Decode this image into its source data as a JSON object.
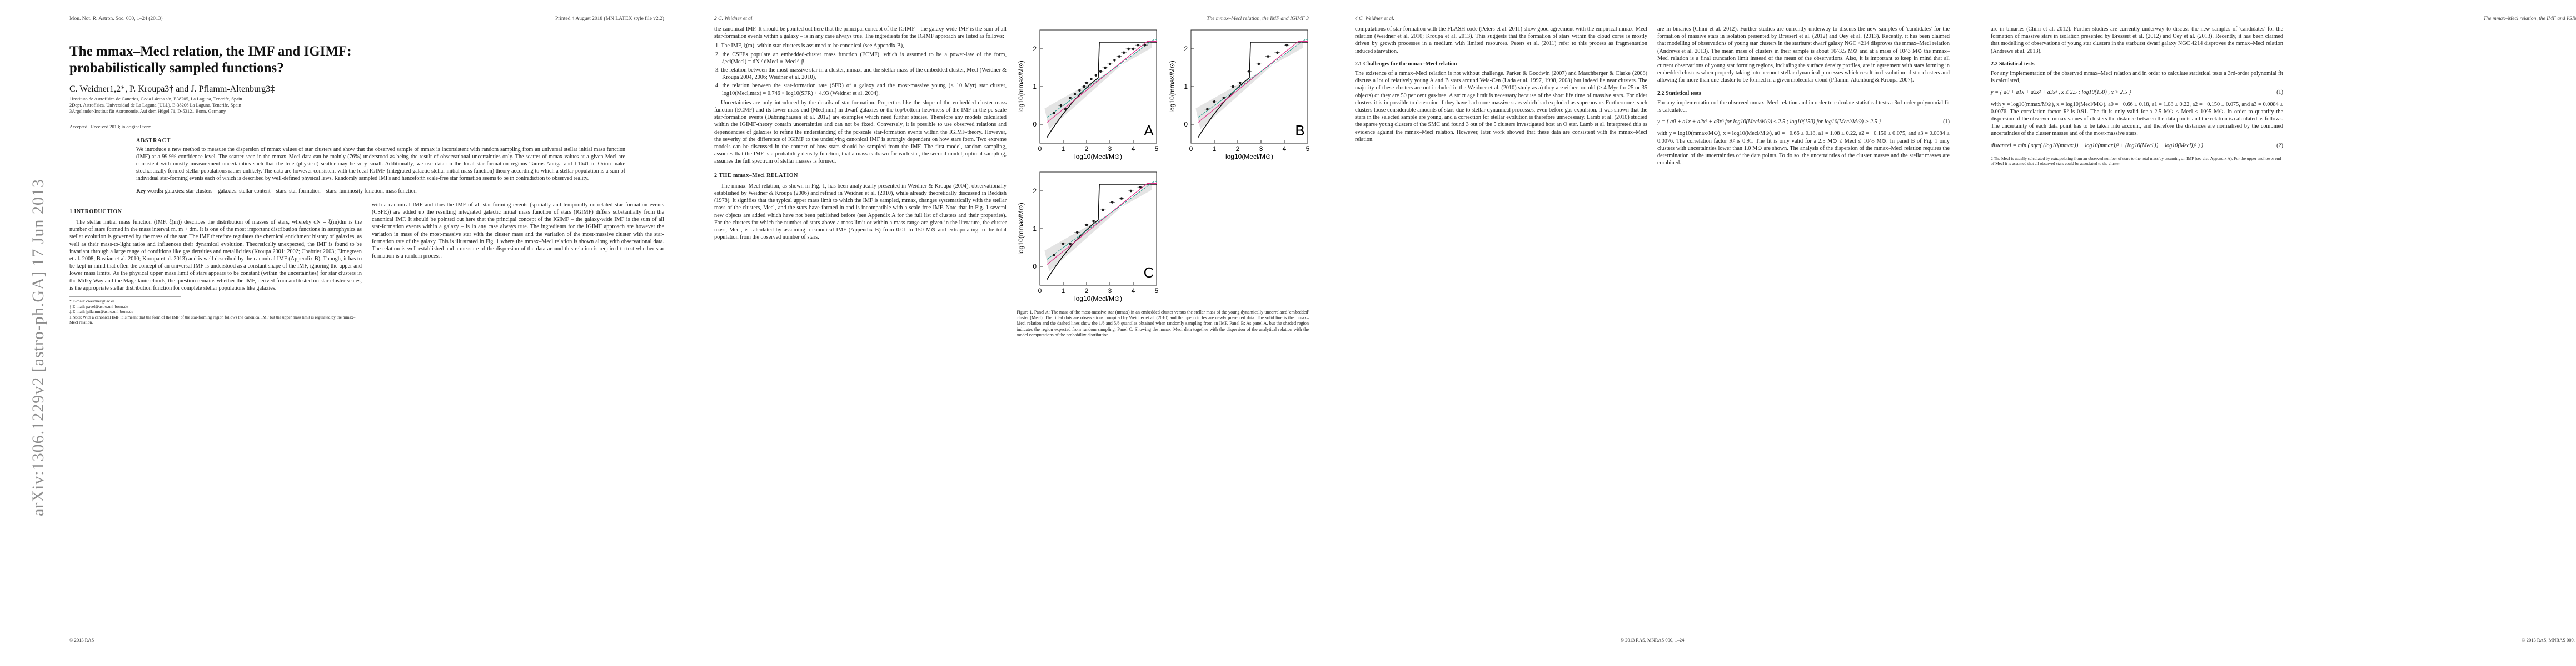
{
  "sidebar": {
    "arxiv_id": "arXiv:1306.1229v2  [astro-ph.GA]  17 Jun 2013"
  },
  "page1": {
    "running_left": "Mon. Not. R. Astron. Soc. 000, 1–24 (2013)",
    "running_right": "Printed 4 August 2018       (MN LATEX style file v2.2)",
    "title": "The mmax–Mecl relation, the IMF and IGIMF: probabilistically sampled functions?",
    "authors": "C. Weidner1,2*, P. Kroupa3† and J. Pflamm-Altenburg3‡",
    "affil1": "1Instituto de Astrofísica de Canarias, C/via Láctea s/n, E38205, La Laguna, Tenerife, Spain",
    "affil2": "2Dept. Astrofísica, Universidad de La Laguna (ULL), E-38206 La Laguna, Tenerife, Spain",
    "affil3": "3Argelander-Institut für Astronomie, Auf dem Hügel 71, D-53121 Bonn, Germany",
    "accepted": "Accepted . Received 2013; in original form",
    "abstract_head": "ABSTRACT",
    "abstract": "We introduce a new method to measure the dispersion of mmax values of star clusters and show that the observed sample of mmax is inconsistent with random sampling from an universal stellar initial mass function (IMF) at a 99.9% confidence level. The scatter seen in the mmax–Mecl data can be mainly (76%) understood as being the result of observational uncertainties only. The scatter of mmax values at a given Mecl are consistent with mostly measurement uncertainties such that the true (physical) scatter may be very small. Additionally, we use data on the local star-formation regions Taurus-Auriga and L1641 in Orion make stochastically formed stellar populations rather unlikely. The data are however consistent with the local IGIMF (integrated galactic stellar initial mass function) theory according to which a stellar population is a sum of individual star-forming events each of which is described by well-defined physical laws. Randomly sampled IMFs and henceforth scale-free star formation seems to be in contradiction to observed reality.",
    "keywords_label": "Key words:",
    "keywords": "galaxies: star clusters – galaxies: stellar content – stars: star formation – stars: luminosity function, mass function",
    "sec1": "1   INTRODUCTION",
    "col1": "The stellar initial mass function (IMF, ξ(m)) describes the distribution of masses of stars, whereby dN = ξ(m)dm is the number of stars formed in the mass interval m, m + dm. It is one of the most important distribution functions in astrophysics as stellar evolution is governed by the mass of the star. The IMF therefore regulates the chemical enrichment history of galaxies, as well as their mass-to-light ratios and influences their dynamical evolution. Theoretically unexpected, the IMF is found to be invariant through a large range of conditions like gas densities and metallicities (Kroupa 2001; 2002; Chabrier 2003; Elmegreen et al. 2008; Bastian et al. 2010; Kroupa et al. 2013) and is well described by the canonical IMF (Appendix B). Though, it has to be kept in mind that often the concept of an universal IMF is understood as a constant shape of the IMF, ignoring the upper and lower mass limits. As the physical upper mass limit of stars appears to be constant (within the uncertainties) for star clusters in the Milky Way and the Magellanic clouds, the question remains whether the IMF, derived from and tested on star cluster scales, is the appropriate stellar distribution function for complete stellar populations like galaxies.",
    "col2": "with a canonical IMF and thus the IMF of all star-forming events (spatially and temporally correlated star formation events (CSFE)) are added up the resulting integrated galactic initial mass function of stars (IGIMF) differs substantially from the canonical IMF. It should be pointed out here that the principal concept of the IGIMF – the galaxy-wide IMF is the sum of all star-formation events within a galaxy – is in any case always true. The ingredients for the IGIMF approach are however the variation in mass of the most-massive star with the cluster mass and the variation of the most-massive cluster with the star-formation rate of the galaxy. This is illustrated in Fig. 1 where the mmax–Mecl relation is shown along with observational data. The relation is well established and a measure of the dispersion of the data around this relation is required to test whether star formation is a random process.",
    "footnotes": [
      "* E-mail: cweidner@iac.es",
      "† E-mail: pavel@astro.uni-bonn.de",
      "‡ E-mail: jpflamm@astro.uni-bonn.de",
      "1 Note: With a canonical IMF it is meant that the form of the IMF of the star-forming region follows the canonical IMF but the upper mass limit is regulated by the mmax–Mecl relation."
    ],
    "footer_left": "© 2013 RAS",
    "footer_right": ""
  },
  "page2": {
    "running_left": "2    C. Weidner et al.",
    "running_right": "The mmax–Mecl relation, the IMF and IGIMF    3",
    "col_top": "the canonical IMF. It should be pointed out here that the principal concept of the IGIMF – the galaxy-wide IMF is the sum of all star-formation events within a galaxy – is in any case always true. The ingredients for the IGIMF approach are listed as follows:",
    "items": [
      "1. The IMF, ξ(m), within star clusters is assumed to be canonical (see Appendix B),",
      "2. the CSFEs populate an embedded-cluster mass function (ECMF), which is assumed to be a power-law of the form, ξecl(Mecl) = dN / dMecl ∝ Mecl^-β,",
      "3. the relation between the most-massive star in a cluster, mmax, and the stellar mass of the embedded cluster, Mecl (Weidner & Kroupa 2004, 2006; Weidner et al. 2010),",
      "4. the relation between the star-formation rate (SFR) of a galaxy and the most-massive young (< 10 Myr) star cluster, log10(Mecl,max) = 0.746 × log10(SFR) + 4.93 (Weidner et al. 2004)."
    ],
    "col_mid": "Uncertainties are only introduced by the details of star-formation. Properties like the slope of the embedded-cluster mass function (ECMF) and its lower mass end (Mecl,min) in dwarf galaxies or the top/bottom-heaviness of the IMF in the pc-scale star-formation events (Dabringhausen et al. 2012) are examples which need further studies. Therefore any models calculated within the IGIMF-theory contain uncertainties and can not be fixed. Conversely, it is possible to use observed relations and dependencies of galaxies to refine the understanding of the pc-scale star-formation events within the IGIMF-theory. However, the severity of the difference of IGIMF to the underlying canonical IMF is strongly dependent on how stars form. Two extreme models can be discussed in the context of how stars should be sampled from the IMF. The first model, random sampling, assumes that the IMF is a probability density function, that a mass is drawn for each star, the second model, optimal sampling, assumes the full spectrum of stellar masses is formed.",
    "sec2": "2   THE mmax–Mecl RELATION",
    "col_sec2": "The mmax–Mecl relation, as shown in Fig. 1, has been analytically presented in Weidner & Kroupa (2004), observationally established by Weidner & Kroupa (2006) and refined in Weidner et al. (2010), while already theoretically discussed in Reddish (1978). It signifies that the typical upper mass limit to which the IMF is sampled, mmax, changes systematically with the stellar mass of the clusters, Mecl, and the stars have formed in and is incompatible with a scale-free IMF. Note that in Fig. 1 several new objects are added which have not been published before (see Appendix A for the full list of clusters and their properties). For the clusters for which the number of stars above a mass limit or within a mass range are given in the literature, the cluster mass, Mecl, is calculated by assuming a canonical IMF (Appendix B) from 0.01 to 150 M⊙ and extrapolating to the total population from the observed number of stars.",
    "col2_text": "computations of star formation with the FLASH code (Peters et al. 2011) show good agreement with the empirical mmax–Mecl relation (Weidner et al. 2010; Kroupa et al. 2013). This suggests that the formation of stars within the cloud cores is mostly driven by growth processes in a medium with limited resources. Peters et al. (2011) refer to this process as fragmentation induced starvation.",
    "caption": "Figure 1. Panel A: The mass of the most-massive star (mmax) in an embedded cluster versus the stellar mass of the young dynamically uncorrelated 'embedded' cluster (Mecl). The filled dots are observations compiled by Weidner et al. (2010) and the open circles are newly presented data. The solid line is the mmax–Mecl relation and the dashed lines show the 1/6 and 5/6 quantiles obtained when randomly sampling from an IMF. Panel B: As panel A, but the shaded region indicates the region expected from random sampling. Panel C: Showing the mmax–Mecl data together with the dispersion of the analytical relation with the model computations of the probability distribution."
  },
  "page3": {
    "running_left": "4    C. Weidner et al.",
    "running_right": "",
    "col1_top": "computations of star formation with the FLASH code (Peters et al. 2011) show good agreement with the empirical mmax–Mecl relation (Weidner et al. 2010; Kroupa et al. 2013). This suggests that the formation of stars within the cloud cores is mostly driven by growth processes in a medium with limited resources. Peters et al. (2011) refer to this process as fragmentation induced starvation.",
    "subsec": "2.1   Challenges for the mmax–Mecl relation",
    "col1": "The existence of a mmax–Mecl relation is not without challenge. Parker & Goodwin (2007) and Maschberger & Clarke (2008) discuss a lot of relatively young A and B stars around Vela-Cen (Lada et al. 1997, 1998, 2008) but indeed lie near clusters. The majority of these clusters are not included in the Weidner et al. (2010) study as a) they are either too old (> 4 Myr for 25 or 35 objects) or they are 50 per cent gas-free. A strict age limit is necessary because of the short life time of massive stars. For older clusters it is impossible to determine if they have had more massive stars which had exploded as supernovae. Furthermore, such clusters loose considerable amounts of stars due to stellar dynamical processes, even before gas expulsion. It was shown that the stars in the selected sample are young, and a correction for stellar evolution is therefore unnecessary. Lamb et al. (2010) studied the sparse young clusters of the SMC and found 3 out of the 5 clusters investigated host an O star. Lamb et al. interpreted this as evidence against the mmax–Mecl relation. However, later work showed that these data are consistent with the mmax–Mecl relation.",
    "col2": "are in binaries (Chini et al. 2012). Further studies are currently underway to discuss the new samples of 'candidates' for the formation of massive stars in isolation presented by Bressert et al. (2012) and Oey et al. (2013). Recently, it has been claimed that modelling of observations of young star clusters in the starburst dwarf galaxy NGC 4214 disproves the mmax–Mecl relation (Andrews et al. 2013). The mean mass of clusters in their sample is about 10^3.5 M⊙ and at a mass of 10^3 M⊙ the mmax–Mecl relation is a final truncation limit instead of the mean of the observations. Also, it is important to keep in mind that all current observations of young star forming regions, including the surface density profiles, are in agreement with stars forming in embedded clusters when properly taking into account stellar dynamical processes which result in dissolution of star clusters and allowing for more than one cluster to be formed in a given molecular cloud (Pflamm-Altenburg & Kroupa 2007).",
    "subsec2": "2.2   Statistical tests",
    "col2b": "For any implementation of the observed mmax–Mecl relation and in order to calculate statistical tests a 3rd-order polynomial fit is calculated,",
    "eq1": "y = { a0 + a1x + a2x² + a3x³    for log10(Mecl/M⊙) ≤ 2.5 ; log10(150)  for log10(Mecl/M⊙) > 2.5 }",
    "eq1_num": "(1)",
    "col2c": "with y = log10(mmax/M⊙), x = log10(Mecl/M⊙), a0 = −0.66 ± 0.18, a1 = 1.08 ± 0.22, a2 = −0.150 ± 0.075, and a3 = 0.0084 ± 0.0076. The correlation factor R² is 0.91. The fit is only valid for a 2.5 M⊙ ≤ Mecl ≤ 10^5 M⊙. In panel B of Fig. 1 only clusters with uncertainties lower than 1.0 M⊙ are shown. The analysis of the dispersion of the mmax–Mecl relation requires the determination of the uncertainties of the data points. To do so, the uncertainties of the cluster masses and the stellar masses are combined.",
    "footer_center": "© 2013 RAS, MNRAS 000, 1–24"
  },
  "page4": {
    "running_left": "",
    "running_right": "The mmax–Mecl relation, the IMF and IGIMF    5",
    "col1": "are in binaries (Chini et al. 2012). Further studies are currently underway to discuss the new samples of 'candidates' for the formation of massive stars in isolation presented by Bressert et al. (2012) and Oey et al. (2013). Recently, it has been claimed that modelling of observations of young star clusters in the starburst dwarf galaxy NGC 4214 disproves the mmax–Mecl relation (Andrews et al. 2013).",
    "subsec": "2.2   Statistical tests",
    "col1b": "For any implementation of the observed mmax–Mecl relation and in order to calculate statistical tests a 3rd-order polynomial fit is calculated,",
    "eq1": "y = { a0 + a1x + a2x² + a3x³ ,  x ≤ 2.5 ;  log10(150) ,  x > 2.5 }",
    "eq1_num": "(1)",
    "col1c": "with y = log10(mmax/M⊙), x = log10(Mecl/M⊙), a0 = −0.66 ± 0.18, a1 = 1.08 ± 0.22, a2 = −0.150 ± 0.075, and a3 = 0.0084 ± 0.0076. The correlation factor R² is 0.91. The fit is only valid for a 2.5 M⊙ ≤ Mecl ≤ 10^5 M⊙. In order to quantify the dispersion of the observed mmax values of clusters the distance between the data points and the relation is calculated as follows. The uncertainty of each data point has to be taken into account, and therefore the distances are normalised by the combined uncertainties of the cluster masses and of the most-massive stars.",
    "eq2": "distancei = min ( sqrt( (log10(mmax,i) − log10(mmax))² + (log10(Mecl,i) − log10(Mecl))² ) )",
    "eq2_num": "(2)",
    "footnote": "2 The Mecl is usually calculated by extrapolating from an observed number of stars to the total mass by assuming an IMF (see also Appendix A). For the upper and lower end of Mecl it is assumed that all observed stars could be associated to the cluster.",
    "footer_right": "© 2013 RAS, MNRAS 000, 1–24"
  },
  "figure": {
    "panels": [
      {
        "label": "A",
        "xlabel": "log10(Mecl/M⊙)",
        "ylabel": "log10(mmax/M⊙)",
        "xticks": [
          "0",
          "1",
          "2",
          "3",
          "4",
          "5"
        ],
        "yticks": [
          "0",
          "1",
          "2"
        ]
      },
      {
        "label": "B",
        "xlabel": "log10(Mecl/M⊙)",
        "ylabel": "log10(mmax/M⊙)",
        "xticks": [
          "0",
          "1",
          "2",
          "3",
          "4",
          "5"
        ],
        "yticks": [
          "0",
          "1",
          "2"
        ]
      },
      {
        "label": "C",
        "xlabel": "log10(Mecl/M⊙)",
        "ylabel": "log10(mmax/M⊙)",
        "xticks": [
          "0",
          "1",
          "2",
          "3",
          "4",
          "5"
        ],
        "yticks": [
          "0",
          "1",
          "2"
        ]
      }
    ],
    "colors": {
      "relation": "#111111",
      "quantile": "#777777",
      "random": "#e0338c",
      "alt": "#2a9d8f",
      "points": "#1a1a1a",
      "shade": "#d9d9d9"
    }
  },
  "chart_data": [
    {
      "type": "scatter",
      "title": "",
      "xlabel": "log10(Mecl/M⊙)",
      "ylabel": "log10(mmax/M⊙)",
      "xlim": [
        0,
        5
      ],
      "ylim": [
        -0.5,
        2.5
      ],
      "series": [
        {
          "values": [
            [
              0.6,
              0.3
            ],
            [
              0.9,
              0.5
            ],
            [
              1.1,
              0.4
            ],
            [
              1.3,
              0.7
            ],
            [
              1.5,
              0.8
            ],
            [
              1.7,
              0.9
            ],
            [
              1.9,
              1.0
            ],
            [
              2.0,
              1.1
            ],
            [
              2.2,
              1.2
            ],
            [
              2.4,
              1.3
            ],
            [
              2.6,
              1.4
            ],
            [
              2.8,
              1.5
            ],
            [
              3.0,
              1.6
            ],
            [
              3.2,
              1.7
            ],
            [
              3.4,
              1.8
            ],
            [
              3.6,
              1.9
            ],
            [
              3.8,
              2.0
            ],
            [
              4.0,
              2.0
            ],
            [
              4.2,
              2.1
            ],
            [
              4.5,
              2.1
            ]
          ]
        }
      ]
    },
    {
      "type": "scatter",
      "title": "",
      "xlabel": "log10(Mecl/M⊙)",
      "ylabel": "log10(mmax/M⊙)",
      "xlim": [
        0,
        5
      ],
      "ylim": [
        -0.5,
        2.5
      ],
      "series": [
        {
          "values": [
            [
              0.7,
              0.4
            ],
            [
              1.0,
              0.6
            ],
            [
              1.4,
              0.7
            ],
            [
              1.8,
              1.0
            ],
            [
              2.1,
              1.1
            ],
            [
              2.5,
              1.4
            ],
            [
              2.9,
              1.6
            ],
            [
              3.3,
              1.8
            ],
            [
              3.7,
              1.9
            ],
            [
              4.1,
              2.1
            ]
          ]
        }
      ]
    },
    {
      "type": "scatter",
      "title": "",
      "xlabel": "log10(Mecl/M⊙)",
      "ylabel": "log10(mmax/M⊙)",
      "xlim": [
        0,
        5
      ],
      "ylim": [
        -0.5,
        2.5
      ],
      "series": [
        {
          "values": [
            [
              0.6,
              0.3
            ],
            [
              1.0,
              0.6
            ],
            [
              1.3,
              0.6
            ],
            [
              1.6,
              0.9
            ],
            [
              2.0,
              1.1
            ],
            [
              2.3,
              1.2
            ],
            [
              2.7,
              1.5
            ],
            [
              3.1,
              1.7
            ],
            [
              3.5,
              1.8
            ],
            [
              3.9,
              2.0
            ],
            [
              4.3,
              2.1
            ]
          ]
        }
      ]
    }
  ]
}
